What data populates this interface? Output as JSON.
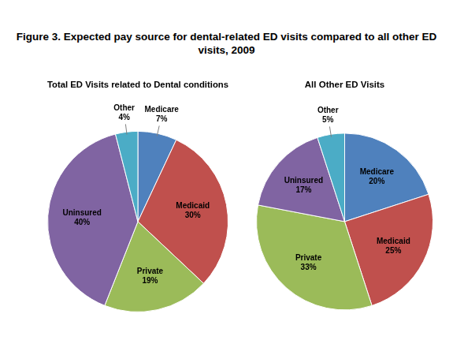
{
  "title": "Figure 3. Expected pay source for dental-related ED visits compared to all other ED visits, 2009",
  "chart_data": [
    {
      "type": "pie",
      "title": "Total ED Visits related to Dental conditions",
      "categories": [
        "Medicare",
        "Medicaid",
        "Private",
        "Uninsured",
        "Other"
      ],
      "values": [
        7,
        30,
        19,
        40,
        4
      ],
      "value_labels": [
        "7%",
        "30%",
        "19%",
        "40%",
        "4%"
      ],
      "colors": [
        "#4f81bd",
        "#c0504d",
        "#9bbb59",
        "#8064a2",
        "#4bacc6"
      ],
      "data_labels": true
    },
    {
      "type": "pie",
      "title": "All Other ED Visits",
      "categories": [
        "Medicare",
        "Medicaid",
        "Private",
        "Uninsured",
        "Other"
      ],
      "values": [
        20,
        25,
        33,
        17,
        5
      ],
      "value_labels": [
        "20%",
        "25%",
        "33%",
        "17%",
        "5%"
      ],
      "colors": [
        "#4f81bd",
        "#c0504d",
        "#9bbb59",
        "#8064a2",
        "#4bacc6"
      ],
      "data_labels": true
    }
  ]
}
